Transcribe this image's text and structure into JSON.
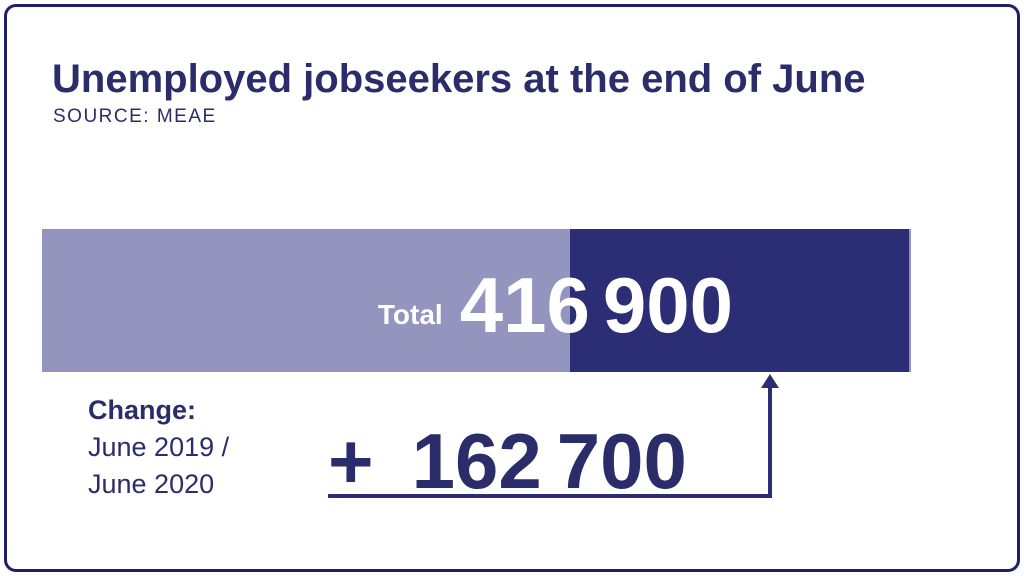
{
  "chart_data": {
    "type": "bar",
    "orientation": "horizontal",
    "title": "Unemployed jobseekers at the end of June",
    "source": "SOURCE: MEAE",
    "total_label": "Total",
    "total_value": 416900,
    "total_display": {
      "part1": "416",
      "part2": "900"
    },
    "segments": [
      {
        "name": "base-level-segment",
        "color": "#9395bf"
      },
      {
        "name": "change-segment",
        "color": "#2b2e74",
        "value": 162700
      }
    ],
    "change": {
      "label": "Change:",
      "period": [
        "June 2019 /",
        "June 2020"
      ],
      "value": 162700,
      "display": "+ 162 700",
      "value_parts": [
        "+",
        "162",
        "700"
      ],
      "arrow_target": "change-segment"
    },
    "legend": "none",
    "grid": "off"
  },
  "colors": {
    "navy_text": "#2b2c6a",
    "bar_dark": "#2b2e74",
    "bar_light": "#9395bf",
    "border": "#1e1e6a",
    "value_text_on_bar": "#ffffff"
  }
}
